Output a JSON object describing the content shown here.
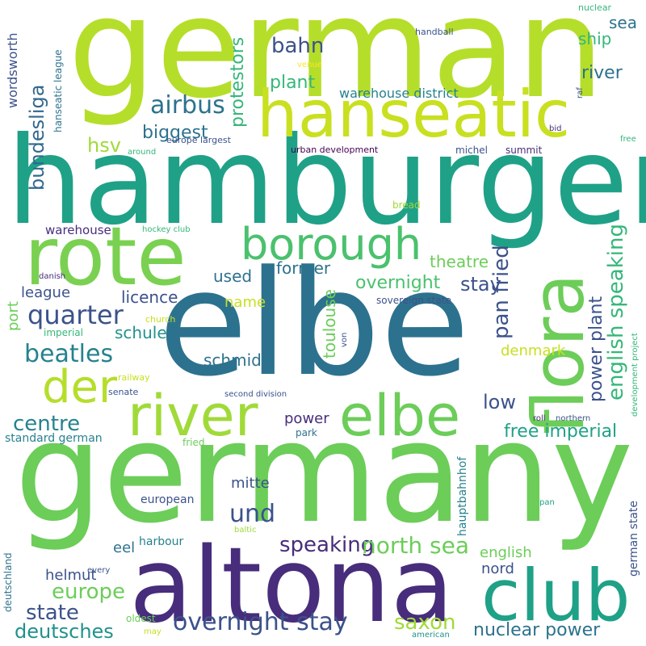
{
  "palette": {
    "lime": "#b5de2b",
    "light_green": "#6ccd59",
    "green": "#35b779",
    "teal_green": "#1fa187",
    "teal": "#21918c",
    "blue_teal": "#2c728e",
    "slate_blue": "#3b528b",
    "indigo": "#472d7b",
    "dark_purple": "#440154",
    "yellow": "#fde725"
  },
  "words": [
    {
      "text": "german",
      "color": "#b5de2b"
    },
    {
      "text": "hamburger",
      "color": "#1fa187"
    },
    {
      "text": "germany",
      "color": "#6ccd59"
    },
    {
      "text": "elbe",
      "color": "#2c728e"
    },
    {
      "text": "altona",
      "color": "#472d7b"
    },
    {
      "text": "rote",
      "color": "#7ad151"
    },
    {
      "text": "hanseatic",
      "color": "#c8e020"
    },
    {
      "text": "flora",
      "color": "#6ccd59"
    },
    {
      "text": "club",
      "color": "#1fa187"
    },
    {
      "text": "river",
      "color": "#a0da39"
    },
    {
      "text": "elbe",
      "color": "#6ccd59"
    },
    {
      "text": "borough",
      "color": "#4ac16d"
    },
    {
      "text": "der",
      "color": "#b5de2b"
    },
    {
      "text": "overnight stay",
      "color": "#3b528b"
    },
    {
      "text": "airbus",
      "color": "#2c728e"
    },
    {
      "text": "quarter",
      "color": "#3b528b"
    },
    {
      "text": "beatles",
      "color": "#26828e"
    },
    {
      "text": "english speaking",
      "color": "#35b779"
    },
    {
      "text": "und",
      "color": "#3b528b"
    },
    {
      "text": "saxon",
      "color": "#a0da39"
    },
    {
      "text": "centre",
      "color": "#26828e"
    },
    {
      "text": "europe",
      "color": "#6ccd59"
    },
    {
      "text": "speaking",
      "color": "#472d7b"
    },
    {
      "text": "state",
      "color": "#3b528b"
    },
    {
      "text": "north sea",
      "color": "#6ccd59"
    },
    {
      "text": "deutsches",
      "color": "#21918c"
    },
    {
      "text": "pan fried",
      "color": "#3b528b"
    },
    {
      "text": "bahn",
      "color": "#3b528b"
    },
    {
      "text": "bundesliga",
      "color": "#31688e"
    },
    {
      "text": "protestors",
      "color": "#35b779"
    },
    {
      "text": "stay",
      "color": "#3b528b"
    },
    {
      "text": "power plant",
      "color": "#3b528b"
    },
    {
      "text": "nuclear power",
      "color": "#2c728e"
    },
    {
      "text": "free imperial",
      "color": "#1fa187"
    },
    {
      "text": "low",
      "color": "#3b528b"
    },
    {
      "text": "overnight",
      "color": "#4ac16d"
    },
    {
      "text": "hsv",
      "color": "#a0da39"
    },
    {
      "text": "biggest",
      "color": "#2c728e"
    },
    {
      "text": "plant",
      "color": "#35b779"
    },
    {
      "text": "river",
      "color": "#2c728e"
    },
    {
      "text": "sea",
      "color": "#2c728e"
    },
    {
      "text": "ship",
      "color": "#35b779"
    },
    {
      "text": "theatre",
      "color": "#6ccd59"
    },
    {
      "text": "licence",
      "color": "#3b528b"
    },
    {
      "text": "former",
      "color": "#2c728e"
    },
    {
      "text": "used",
      "color": "#2c728e"
    },
    {
      "text": "schule",
      "color": "#21918c"
    },
    {
      "text": "schmidt",
      "color": "#2c728e"
    },
    {
      "text": "toulouse",
      "color": "#6ccd59"
    },
    {
      "text": "league",
      "color": "#3b528b"
    },
    {
      "text": "power",
      "color": "#472d7b"
    },
    {
      "text": "helmut",
      "color": "#3b528b"
    },
    {
      "text": "english",
      "color": "#6ccd59"
    },
    {
      "text": "nord",
      "color": "#3b528b"
    },
    {
      "text": "mitte",
      "color": "#3b528b"
    },
    {
      "text": "eel",
      "color": "#2c728e"
    },
    {
      "text": "denmark",
      "color": "#c8e020"
    },
    {
      "text": "name",
      "color": "#c8e020"
    },
    {
      "text": "port",
      "color": "#6ccd59"
    },
    {
      "text": "wordsworth",
      "color": "#3b528b"
    },
    {
      "text": "warehouse district",
      "color": "#26828e"
    },
    {
      "text": "warehouse",
      "color": "#472d7b"
    },
    {
      "text": "standard german",
      "color": "#26828e"
    },
    {
      "text": "european",
      "color": "#3b528b"
    },
    {
      "text": "harbour",
      "color": "#26828e"
    },
    {
      "text": "hauptbahnhof",
      "color": "#26828e"
    },
    {
      "text": "german state",
      "color": "#3b528b"
    },
    {
      "text": "deutschland",
      "color": "#2c728e"
    },
    {
      "text": "hanseatic league",
      "color": "#2c728e"
    },
    {
      "text": "sovereign state",
      "color": "#3b528b"
    },
    {
      "text": "michel",
      "color": "#3b528b"
    },
    {
      "text": "summit",
      "color": "#472d7b"
    },
    {
      "text": "urban development",
      "color": "#440154"
    },
    {
      "text": "europe largest",
      "color": "#3b528b"
    },
    {
      "text": "handball",
      "color": "#3b528b"
    },
    {
      "text": "nuclear",
      "color": "#35b779"
    },
    {
      "text": "venue",
      "color": "#fde725"
    },
    {
      "text": "around",
      "color": "#35b779"
    },
    {
      "text": "bread",
      "color": "#a0da39"
    },
    {
      "text": "hockey club",
      "color": "#35b779"
    },
    {
      "text": "danish",
      "color": "#472d7b"
    },
    {
      "text": "church",
      "color": "#c8e020"
    },
    {
      "text": "imperial",
      "color": "#35b779"
    },
    {
      "text": "railway",
      "color": "#c8e020"
    },
    {
      "text": "senate",
      "color": "#3b528b"
    },
    {
      "text": "second division",
      "color": "#3b528b"
    },
    {
      "text": "von",
      "color": "#3b528b"
    },
    {
      "text": "park",
      "color": "#2c728e"
    },
    {
      "text": "fried",
      "color": "#6ccd59"
    },
    {
      "text": "roll",
      "color": "#472d7b"
    },
    {
      "text": "northern",
      "color": "#3b528b"
    },
    {
      "text": "development project",
      "color": "#35b779"
    },
    {
      "text": "pan",
      "color": "#1fa187"
    },
    {
      "text": "baltic",
      "color": "#a0da39"
    },
    {
      "text": "every",
      "color": "#3b528b"
    },
    {
      "text": "oldest",
      "color": "#6ccd59"
    },
    {
      "text": "may",
      "color": "#c8e020"
    },
    {
      "text": "american",
      "color": "#21918c"
    },
    {
      "text": "raf",
      "color": "#3b528b"
    },
    {
      "text": "bid",
      "color": "#472d7b"
    },
    {
      "text": "free",
      "color": "#35b779"
    }
  ]
}
